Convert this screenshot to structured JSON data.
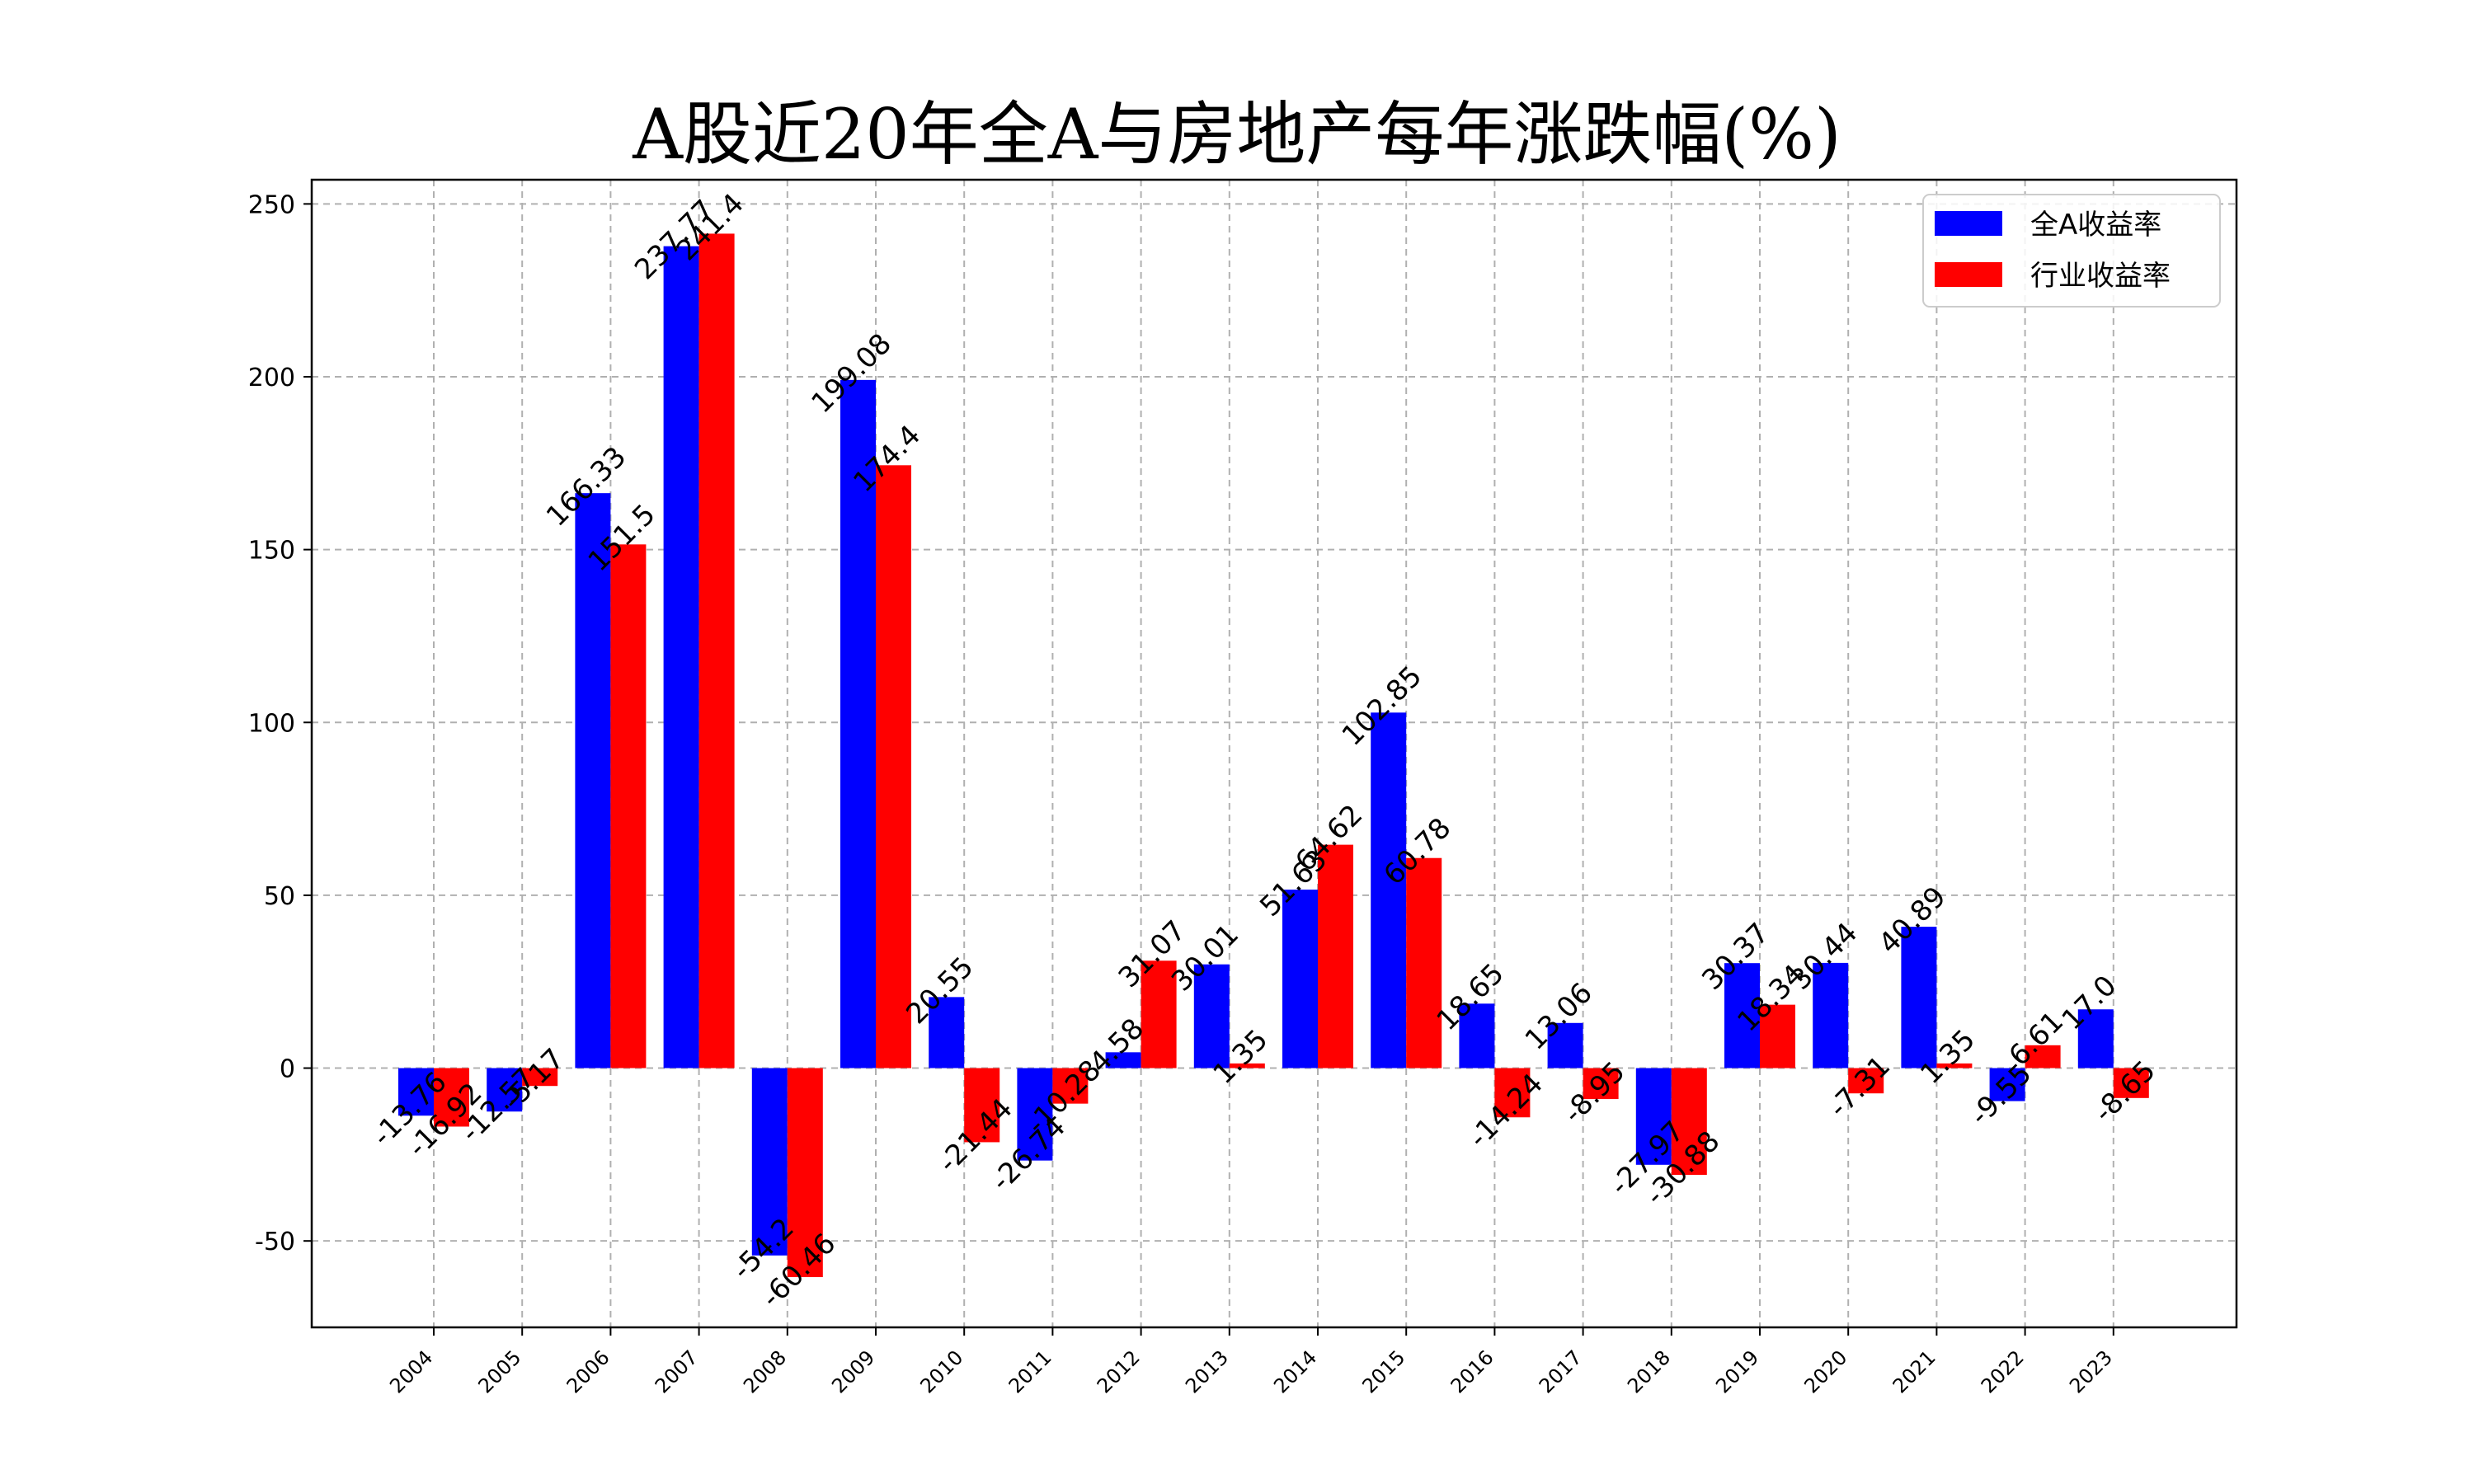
{
  "chart_data": {
    "type": "bar",
    "title": "A股近20年全A与房地产每年涨跌幅(%)",
    "xlabel": "",
    "ylabel": "",
    "categories": [
      "2004",
      "2005",
      "2006",
      "2007",
      "2008",
      "2009",
      "2010",
      "2011",
      "2012",
      "2013",
      "2014",
      "2015",
      "2016",
      "2017",
      "2018",
      "2019",
      "2020",
      "2021",
      "2022",
      "2023"
    ],
    "series": [
      {
        "name": "全A收益率",
        "color": "#0000ff",
        "values": [
          -13.76,
          -12.57,
          166.33,
          237.77,
          -54.2,
          199.08,
          20.55,
          -26.74,
          4.58,
          30.01,
          51.63,
          102.85,
          18.65,
          13.06,
          -27.97,
          30.37,
          30.44,
          40.89,
          -9.55,
          17.0
        ],
        "labels": [
          "-13.76",
          "-12.57",
          "166.33",
          "237.77",
          "-54.2",
          "199.08",
          "20.55",
          "-26.74",
          "4.58",
          "30.01",
          "51.63",
          "102.85",
          "18.65",
          "13.06",
          "-27.97",
          "30.37",
          "30.44",
          "40.89",
          "-9.55",
          "17.0"
        ]
      },
      {
        "name": "行业收益率",
        "color": "#ff0000",
        "values": [
          -16.92,
          -5.17,
          151.5,
          241.4,
          -60.46,
          174.4,
          -21.44,
          -10.28,
          31.07,
          1.35,
          64.62,
          60.78,
          -14.24,
          -8.95,
          -30.88,
          18.34,
          -7.31,
          1.35,
          6.61,
          -8.65
        ],
        "labels": [
          "-16.92",
          "-5.17",
          "151.5",
          "241.4",
          "-60.46",
          "174.4",
          "-21.44",
          "-10.28",
          "31.07",
          "1.35",
          "64.62",
          "60.78",
          "-14.24",
          "-8.95",
          "-30.88",
          "18.34",
          "-7.31",
          "1.35",
          "6.61",
          "-8.65"
        ]
      }
    ],
    "ylim": [
      -75,
      257
    ],
    "yticks": [
      -50,
      0,
      50,
      100,
      150,
      200,
      250
    ],
    "grid": true,
    "legend": "top-right"
  }
}
